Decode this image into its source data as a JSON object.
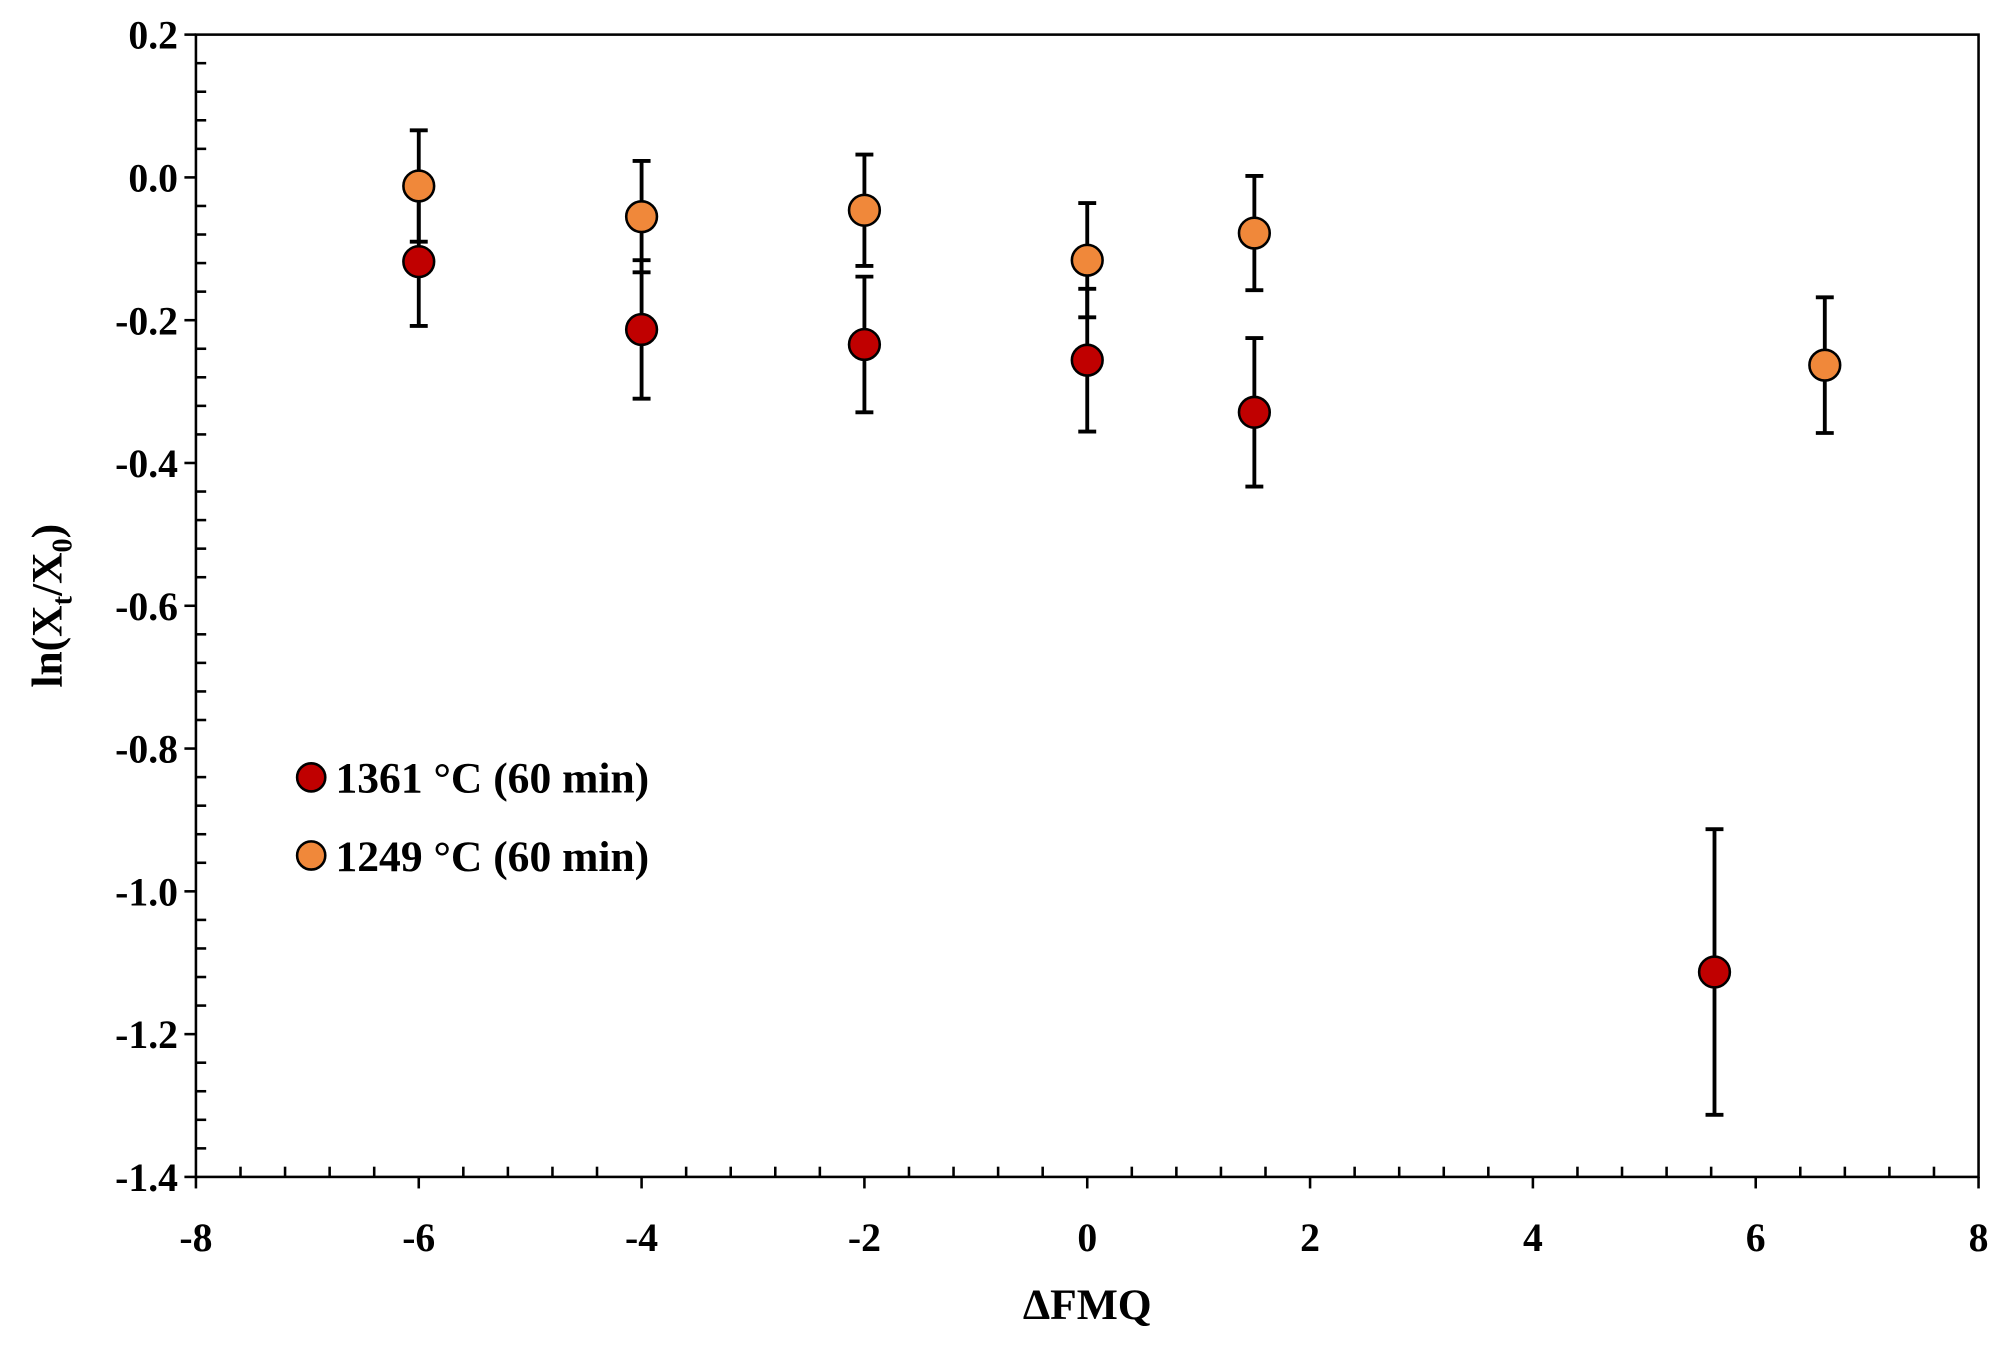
{
  "chart_data": {
    "type": "scatter",
    "xlabel": "ΔFMQ",
    "ylabel": {
      "base": "ln(X",
      "sub1": "t",
      "mid": "/X",
      "sub2": "0",
      "end": ")"
    },
    "xlim": [
      -8,
      8
    ],
    "ylim": [
      -1.4,
      0.2
    ],
    "x_ticks": [
      "-8",
      "-6",
      "-4",
      "-2",
      "0",
      "2",
      "4",
      "6",
      "8"
    ],
    "y_ticks": [
      "0.2",
      "0.0",
      "-0.2",
      "-0.4",
      "-0.6",
      "-0.8",
      "-1.0",
      "-1.2",
      "-1.4"
    ],
    "grid": false,
    "legend_position": "lower-left",
    "series": [
      {
        "name": "1361 °C (60 min)",
        "color": "#c00000",
        "points": [
          {
            "x": -6,
            "y": -0.118,
            "err": 0.09
          },
          {
            "x": -4,
            "y": -0.213,
            "err": 0.097
          },
          {
            "x": -2,
            "y": -0.234,
            "err": 0.095
          },
          {
            "x": 0,
            "y": -0.256,
            "err": 0.1
          },
          {
            "x": 1.5,
            "y": -0.329,
            "err": 0.104
          },
          {
            "x": 5.63,
            "y": -1.113,
            "err": 0.2
          }
        ]
      },
      {
        "name": "1249 °C (60 min)",
        "color": "#f0883a",
        "points": [
          {
            "x": -6,
            "y": -0.012,
            "err": 0.078
          },
          {
            "x": -4,
            "y": -0.055,
            "err": 0.078
          },
          {
            "x": -2,
            "y": -0.046,
            "err": 0.078
          },
          {
            "x": 0,
            "y": -0.116,
            "err": 0.08
          },
          {
            "x": 1.5,
            "y": -0.078,
            "err": 0.08
          },
          {
            "x": 6.62,
            "y": -0.263,
            "err": 0.095
          }
        ]
      }
    ]
  }
}
